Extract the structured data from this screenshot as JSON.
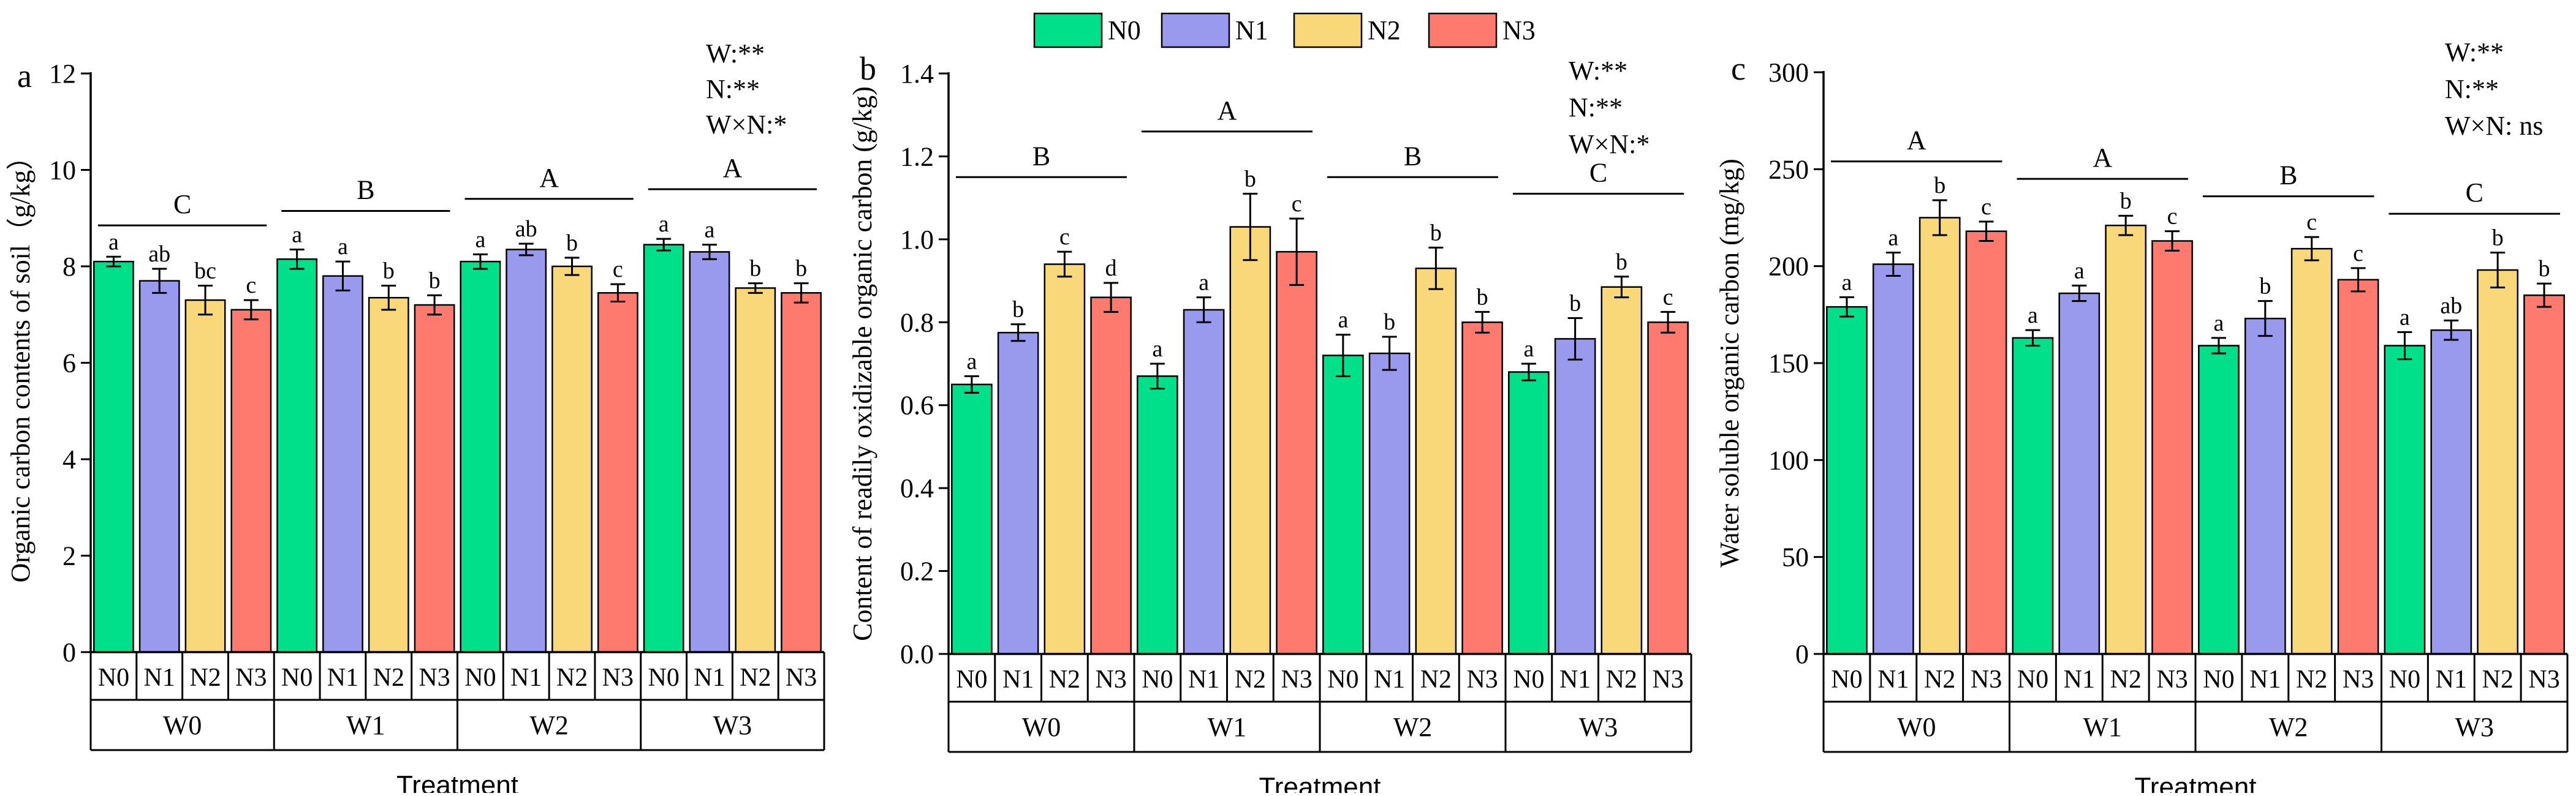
{
  "legend": {
    "items": [
      {
        "label": "N0",
        "color": "#00E08A"
      },
      {
        "label": "N1",
        "color": "#9999EE"
      },
      {
        "label": "N2",
        "color": "#F8D878"
      },
      {
        "label": "N3",
        "color": "#FF7A6E"
      }
    ]
  },
  "chart_data": [
    {
      "type": "bar",
      "panel_letter": "a",
      "ylabel": "Organic carbon contents of soil（g/kg）",
      "xlabel": "Treatment",
      "ylim": [
        0,
        12
      ],
      "yticks": [
        "0",
        "2",
        "4",
        "6",
        "8",
        "10",
        "12"
      ],
      "groups": [
        "W0",
        "W1",
        "W2",
        "W3"
      ],
      "categories": [
        "N0",
        "N1",
        "N2",
        "N3"
      ],
      "values": [
        [
          8.1,
          7.7,
          7.3,
          7.1
        ],
        [
          8.15,
          7.8,
          7.35,
          7.2
        ],
        [
          8.1,
          8.35,
          8.0,
          7.45
        ],
        [
          8.45,
          8.3,
          7.55,
          7.45
        ]
      ],
      "errors": [
        [
          0.1,
          0.25,
          0.3,
          0.2
        ],
        [
          0.2,
          0.3,
          0.25,
          0.2
        ],
        [
          0.15,
          0.12,
          0.18,
          0.18
        ],
        [
          0.12,
          0.15,
          0.1,
          0.2
        ]
      ],
      "letters": [
        [
          "a",
          "ab",
          "bc",
          "c"
        ],
        [
          "a",
          "a",
          "b",
          "b"
        ],
        [
          "a",
          "ab",
          "b",
          "c"
        ],
        [
          "a",
          "a",
          "b",
          "b"
        ]
      ],
      "group_letters": [
        "C",
        "B",
        "A",
        "A"
      ],
      "group_line_level": [
        8.85,
        9.15,
        9.4,
        9.6
      ],
      "annotations": [
        "W:**",
        "N:**",
        "W×N:*"
      ]
    },
    {
      "type": "bar",
      "panel_letter": "b",
      "ylabel": "Content of readily oxidizable organic carbon (g/kg)",
      "xlabel": "Treatment",
      "ylim": [
        0,
        1.4
      ],
      "yticks": [
        "0.0",
        "0.2",
        "0.4",
        "0.6",
        "0.8",
        "1.0",
        "1.2",
        "1.4"
      ],
      "groups": [
        "W0",
        "W1",
        "W2",
        "W3"
      ],
      "categories": [
        "N0",
        "N1",
        "N2",
        "N3"
      ],
      "values": [
        [
          0.65,
          0.775,
          0.94,
          0.86
        ],
        [
          0.67,
          0.83,
          1.03,
          0.97
        ],
        [
          0.72,
          0.725,
          0.93,
          0.8
        ],
        [
          0.68,
          0.76,
          0.885,
          0.8
        ]
      ],
      "errors": [
        [
          0.02,
          0.02,
          0.03,
          0.035
        ],
        [
          0.03,
          0.03,
          0.08,
          0.08
        ],
        [
          0.05,
          0.04,
          0.05,
          0.025
        ],
        [
          0.02,
          0.05,
          0.025,
          0.025
        ]
      ],
      "letters": [
        [
          "a",
          "b",
          "c",
          "d"
        ],
        [
          "a",
          "a",
          "b",
          "c"
        ],
        [
          "a",
          "b",
          "b",
          "b"
        ],
        [
          "a",
          "b",
          "b",
          "c"
        ]
      ],
      "group_letters": [
        "B",
        "A",
        "B",
        "C"
      ],
      "group_line_level": [
        1.15,
        1.26,
        1.15,
        1.11
      ],
      "annotations": [
        "W:**",
        "N:**",
        "W×N:*"
      ]
    },
    {
      "type": "bar",
      "panel_letter": "c",
      "ylabel": "Water soluble organic carbon (mg/kg)",
      "xlabel": "Treatment",
      "ylim": [
        0,
        300
      ],
      "yticks": [
        "0",
        "50",
        "100",
        "150",
        "200",
        "250",
        "300"
      ],
      "groups": [
        "W0",
        "W1",
        "W2",
        "W3"
      ],
      "categories": [
        "N0",
        "N1",
        "N2",
        "N3"
      ],
      "values": [
        [
          179,
          201,
          225,
          218
        ],
        [
          163,
          186,
          221,
          213
        ],
        [
          159,
          173,
          209,
          193
        ],
        [
          159,
          167,
          198,
          185
        ]
      ],
      "errors": [
        [
          5,
          6,
          9,
          5
        ],
        [
          4,
          4,
          5,
          5
        ],
        [
          4,
          9,
          6,
          6
        ],
        [
          7,
          5,
          9,
          6
        ]
      ],
      "letters": [
        [
          "a",
          "a",
          "b",
          "c"
        ],
        [
          "a",
          "a",
          "b",
          "c"
        ],
        [
          "a",
          "b",
          "c",
          "c"
        ],
        [
          "a",
          "ab",
          "b",
          "b"
        ]
      ],
      "group_letters": [
        "A",
        "A",
        "B",
        "C"
      ],
      "group_line_level": [
        254,
        245,
        236,
        227
      ],
      "annotations": [
        "W:**",
        "N:**",
        "W×N: ns"
      ]
    }
  ]
}
